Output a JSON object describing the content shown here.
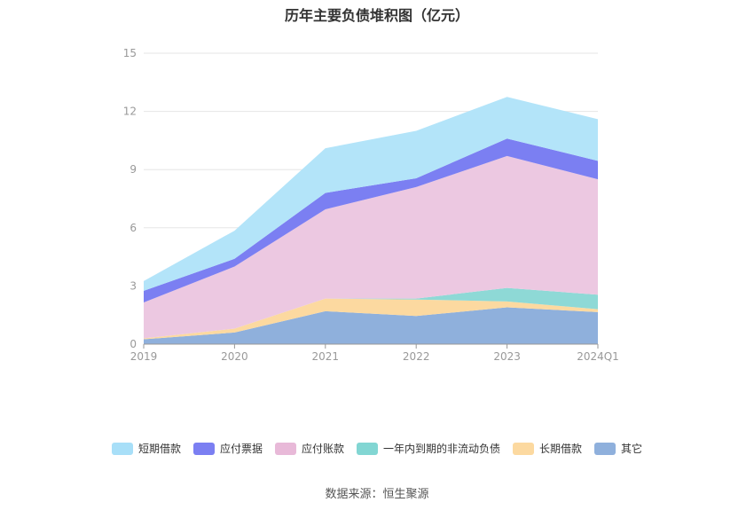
{
  "chart_data": {
    "type": "area",
    "stacked": true,
    "title": "历年主要负债堆积图（亿元）",
    "categories": [
      "2019",
      "2020",
      "2021",
      "2022",
      "2023",
      "2024Q1"
    ],
    "y_ticks": [
      "0",
      "3",
      "6",
      "9",
      "12",
      "15"
    ],
    "ylim": [
      0,
      15
    ],
    "grid": true,
    "legend_position": "bottom",
    "series": [
      {
        "name": "其它",
        "color": "#8fb0dc",
        "values": [
          0.25,
          0.6,
          1.7,
          1.45,
          1.9,
          1.65
        ]
      },
      {
        "name": "长期借款",
        "color": "#fcd9a0",
        "values": [
          0.05,
          0.2,
          0.65,
          0.85,
          0.3,
          0.15
        ]
      },
      {
        "name": "一年内到期的非流动负债",
        "color": "#8ed9d6",
        "values": [
          0.0,
          0.0,
          0.0,
          0.05,
          0.7,
          0.75
        ]
      },
      {
        "name": "应付账款",
        "color": "#ecc8e1",
        "values": [
          1.85,
          3.2,
          4.6,
          5.75,
          6.8,
          5.95
        ]
      },
      {
        "name": "应付票据",
        "color": "#7b7ff2",
        "values": [
          0.6,
          0.4,
          0.85,
          0.45,
          0.9,
          0.95
        ]
      },
      {
        "name": "短期借款",
        "color": "#b3e4f9",
        "values": [
          0.5,
          1.45,
          2.3,
          2.45,
          2.15,
          2.15
        ]
      }
    ]
  },
  "legend": {
    "items": [
      {
        "label": "短期借款",
        "color": "#a8dff8"
      },
      {
        "label": "应付票据",
        "color": "#7b7ff2"
      },
      {
        "label": "应付账款",
        "color": "#e8b9d8"
      },
      {
        "label": "一年内到期的非流动负债",
        "color": "#82d6d3"
      },
      {
        "label": "长期借款",
        "color": "#fcd9a0"
      },
      {
        "label": "其它",
        "color": "#8fb0dc"
      }
    ]
  },
  "source": "数据来源：恒生聚源"
}
